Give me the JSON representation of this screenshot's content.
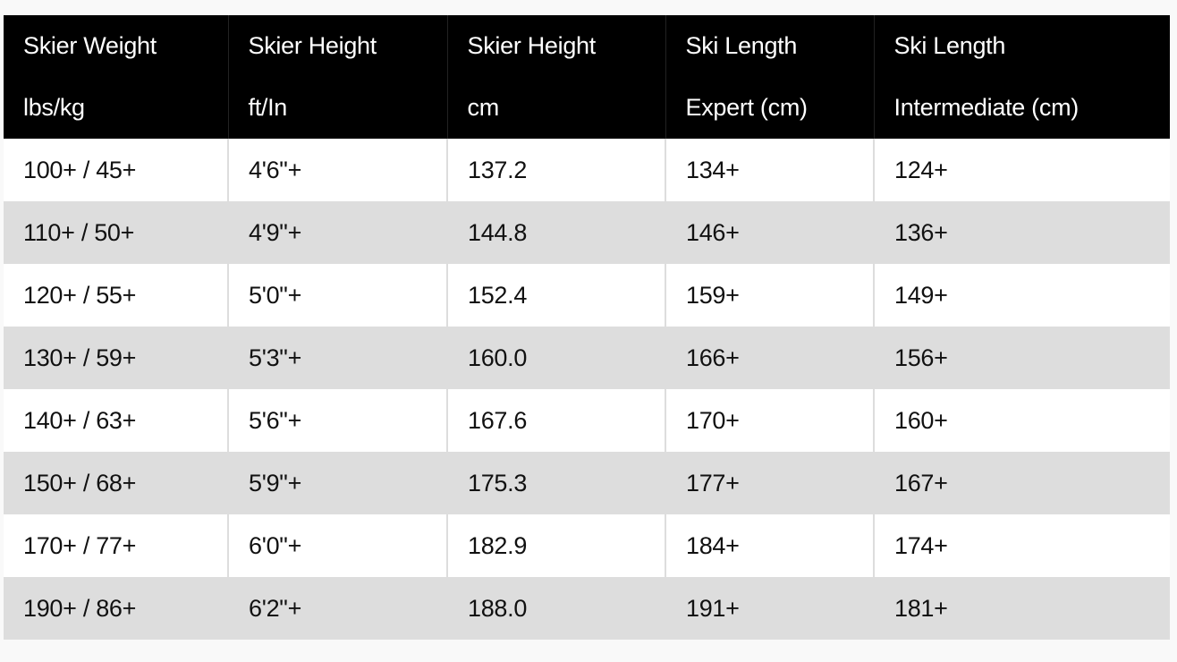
{
  "table": {
    "headers": [
      {
        "line1": "Skier Weight",
        "line2": "lbs/kg"
      },
      {
        "line1": "Skier Height",
        "line2": "ft/In"
      },
      {
        "line1": "Skier Height",
        "line2": "cm"
      },
      {
        "line1": "Ski Length",
        "line2": "Expert (cm)"
      },
      {
        "line1": "Ski Length",
        "line2": "Intermediate (cm)"
      }
    ],
    "rows": [
      [
        "100+ / 45+",
        "4'6\"+",
        "137.2",
        "134+",
        "124+"
      ],
      [
        "110+ / 50+",
        "4'9\"+",
        "144.8",
        "146+",
        "136+"
      ],
      [
        "120+ / 55+",
        "5'0\"+",
        "152.4",
        "159+",
        "149+"
      ],
      [
        "130+ / 59+",
        "5'3\"+",
        "160.0",
        "166+",
        "156+"
      ],
      [
        "140+ / 63+",
        "5'6\"+",
        "167.6",
        "170+",
        "160+"
      ],
      [
        "150+ / 68+",
        "5'9\"+",
        "175.3",
        "177+",
        "167+"
      ],
      [
        "170+ / 77+",
        "6'0\"+",
        "182.9",
        "184+",
        "174+"
      ],
      [
        "190+ / 86+",
        "6'2\"+",
        "188.0",
        "191+",
        "181+"
      ]
    ],
    "colors": {
      "header_bg": "#000000",
      "header_text": "#ffffff",
      "stripe": "#dddddd",
      "row_bg": "#ffffff"
    }
  }
}
